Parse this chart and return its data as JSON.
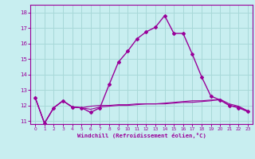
{
  "xlabel": "Windchill (Refroidissement éolien,°C)",
  "background_color": "#c8eef0",
  "line_color": "#990099",
  "grid_color": "#a8d8d8",
  "xlim": [
    -0.5,
    23.5
  ],
  "ylim": [
    10.8,
    18.5
  ],
  "yticks": [
    11,
    12,
    13,
    14,
    15,
    16,
    17,
    18
  ],
  "xticks": [
    0,
    1,
    2,
    3,
    4,
    5,
    6,
    7,
    8,
    9,
    10,
    11,
    12,
    13,
    14,
    15,
    16,
    17,
    18,
    19,
    20,
    21,
    22,
    23
  ],
  "series1_x": [
    0,
    1,
    2,
    3,
    4,
    5,
    6,
    7,
    8,
    9,
    10,
    11,
    12,
    13,
    14,
    15,
    16,
    17,
    18,
    19,
    20,
    21,
    22,
    23
  ],
  "series1_y": [
    12.5,
    10.85,
    11.85,
    12.3,
    11.9,
    11.85,
    11.55,
    11.85,
    13.35,
    14.8,
    15.5,
    16.3,
    16.75,
    17.05,
    17.8,
    16.65,
    16.65,
    15.3,
    13.85,
    12.6,
    12.35,
    12.0,
    11.85,
    11.6
  ],
  "series2_x": [
    0,
    1,
    2,
    3,
    4,
    5,
    6,
    7,
    8,
    9,
    10,
    11,
    12,
    13,
    14,
    15,
    16,
    17,
    18,
    19,
    20,
    21,
    22,
    23
  ],
  "series2_y": [
    12.5,
    10.85,
    11.85,
    12.3,
    11.9,
    11.85,
    11.95,
    12.0,
    12.0,
    12.05,
    12.05,
    12.1,
    12.1,
    12.1,
    12.15,
    12.2,
    12.25,
    12.3,
    12.3,
    12.35,
    12.35,
    12.0,
    11.9,
    11.6
  ],
  "series3_x": [
    0,
    1,
    2,
    3,
    4,
    5,
    6,
    7,
    8,
    9,
    10,
    11,
    12,
    13,
    14,
    15,
    16,
    17,
    18,
    19,
    20,
    21,
    22,
    23
  ],
  "series3_y": [
    12.5,
    10.85,
    11.85,
    12.3,
    11.9,
    11.85,
    11.75,
    11.9,
    11.95,
    12.0,
    12.0,
    12.05,
    12.1,
    12.1,
    12.1,
    12.15,
    12.2,
    12.2,
    12.25,
    12.3,
    12.4,
    12.1,
    11.95,
    11.65
  ]
}
